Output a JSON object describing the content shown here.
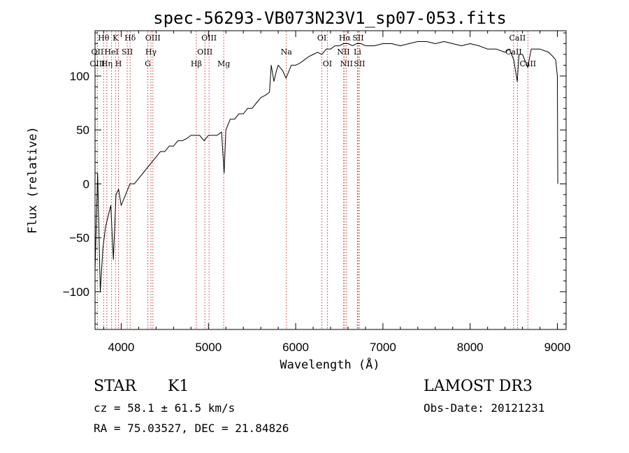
{
  "chart_data": {
    "type": "line",
    "title": "spec-56293-VB073N23V1_sp07-053.fits",
    "xlabel": "Wavelength (Å)",
    "ylabel": "Flux (relative)",
    "xlim": [
      3700,
      9100
    ],
    "ylim": [
      -135,
      142
    ],
    "xticks": [
      4000,
      5000,
      6000,
      7000,
      8000,
      9000
    ],
    "yticks": [
      -100,
      -50,
      0,
      50,
      100
    ],
    "x_tick_labels": [
      "4000",
      "5000",
      "6000",
      "7000",
      "8000",
      "9000"
    ],
    "y_tick_labels": [
      "−100",
      "−50",
      "0",
      "50",
      "100"
    ],
    "series": [
      {
        "name": "flux",
        "x": [
          3700,
          3730,
          3760,
          3790,
          3820,
          3850,
          3880,
          3910,
          3940,
          3970,
          4000,
          4050,
          4100,
          4150,
          4200,
          4250,
          4300,
          4350,
          4400,
          4450,
          4500,
          4550,
          4600,
          4650,
          4700,
          4750,
          4800,
          4850,
          4900,
          4950,
          5000,
          5050,
          5100,
          5150,
          5180,
          5200,
          5250,
          5300,
          5350,
          5400,
          5450,
          5500,
          5550,
          5600,
          5650,
          5700,
          5720,
          5750,
          5780,
          5800,
          5850,
          5890,
          5950,
          6000,
          6050,
          6100,
          6150,
          6200,
          6250,
          6300,
          6350,
          6400,
          6450,
          6500,
          6550,
          6600,
          6650,
          6700,
          6750,
          6800,
          6900,
          7000,
          7100,
          7200,
          7300,
          7400,
          7500,
          7600,
          7700,
          7800,
          7900,
          8000,
          8100,
          8200,
          8300,
          8400,
          8450,
          8500,
          8540,
          8560,
          8600,
          8660,
          8700,
          8800,
          8900,
          8950,
          8980,
          9000,
          9005
        ],
        "values": [
          -80,
          10,
          -100,
          -60,
          -40,
          -30,
          -20,
          -70,
          -10,
          -5,
          -20,
          -10,
          0,
          0,
          5,
          10,
          15,
          20,
          25,
          30,
          30,
          35,
          35,
          40,
          40,
          42,
          45,
          45,
          45,
          40,
          45,
          45,
          45,
          48,
          10,
          50,
          60,
          60,
          65,
          65,
          70,
          70,
          75,
          80,
          82,
          85,
          110,
          95,
          105,
          110,
          105,
          98,
          110,
          110,
          112,
          115,
          118,
          120,
          122,
          120,
          125,
          125,
          128,
          128,
          130,
          130,
          128,
          130,
          130,
          128,
          128,
          130,
          130,
          128,
          130,
          132,
          132,
          130,
          132,
          130,
          128,
          130,
          128,
          125,
          125,
          122,
          125,
          115,
          95,
          120,
          120,
          108,
          125,
          125,
          122,
          118,
          115,
          100,
          0
        ]
      }
    ],
    "line_markers": [
      {
        "label": "Hθ",
        "wavelength": 3798,
        "row": 0
      },
      {
        "label": "OII",
        "wavelength": 3727,
        "row": 1
      },
      {
        "label": "OIII",
        "wavelength": 3727,
        "row": 2
      },
      {
        "label": "Hη",
        "wavelength": 3835,
        "row": 2
      },
      {
        "label": "HeI",
        "wavelength": 3889,
        "row": 1
      },
      {
        "label": "K",
        "wavelength": 3934,
        "row": 0
      },
      {
        "label": "H",
        "wavelength": 3969,
        "row": 2
      },
      {
        "label": "SII",
        "wavelength": 4069,
        "row": 1
      },
      {
        "label": "Hδ",
        "wavelength": 4102,
        "row": 0
      },
      {
        "label": "OIII",
        "wavelength": 4363,
        "row": 0
      },
      {
        "label": "Hγ",
        "wavelength": 4341,
        "row": 1
      },
      {
        "label": "G",
        "wavelength": 4305,
        "row": 2
      },
      {
        "label": "Hβ",
        "wavelength": 4861,
        "row": 2
      },
      {
        "label": "OIII",
        "wavelength": 5007,
        "row": 0
      },
      {
        "label": "OIII",
        "wavelength": 4959,
        "row": 1
      },
      {
        "label": "Mg",
        "wavelength": 5175,
        "row": 2
      },
      {
        "label": "Na",
        "wavelength": 5893,
        "row": 1
      },
      {
        "label": "OI",
        "wavelength": 6300,
        "row": 0
      },
      {
        "label": "OI",
        "wavelength": 6363,
        "row": 2
      },
      {
        "label": "Hα",
        "wavelength": 6563,
        "row": 0
      },
      {
        "label": "NII",
        "wavelength": 6548,
        "row": 1
      },
      {
        "label": "NII",
        "wavelength": 6583,
        "row": 2
      },
      {
        "label": "SII",
        "wavelength": 6716,
        "row": 0
      },
      {
        "label": "Li",
        "wavelength": 6708,
        "row": 1
      },
      {
        "label": "SII",
        "wavelength": 6731,
        "row": 2
      },
      {
        "label": "CaII",
        "wavelength": 8542,
        "row": 0
      },
      {
        "label": "CaII",
        "wavelength": 8498,
        "row": 1
      },
      {
        "label": "CaII",
        "wavelength": 8662,
        "row": 2
      }
    ]
  },
  "info": {
    "class": "STAR",
    "subclass": "K1",
    "survey": "LAMOST DR3",
    "redshift": "cz = 58.1 ± 61.5 km/s",
    "obs_date": "Obs-Date: 20121231",
    "coords": "RA =  75.03527, DEC =  21.84826"
  },
  "colors": {
    "axis": "#000000",
    "spectrum": "#000000",
    "marker": "#d03030"
  }
}
